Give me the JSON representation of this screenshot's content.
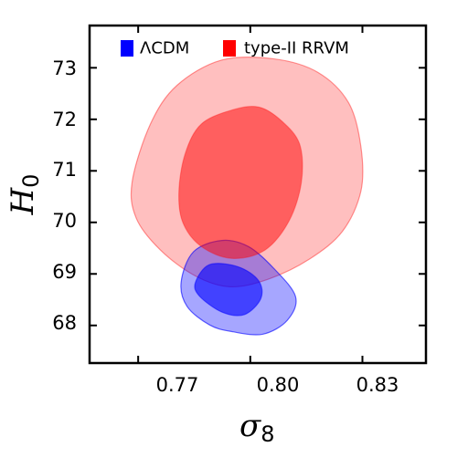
{
  "chart_data": {
    "type": "contour",
    "xlabel": "σ",
    "xlabel_sub": "8",
    "ylabel": "H",
    "ylabel_sub": "0",
    "xlim": [
      0.757,
      0.847
    ],
    "ylim": [
      67.27,
      73.82
    ],
    "xticks": [
      0.77,
      0.8,
      0.83
    ],
    "xtick_labels": [
      "0.77",
      "0.80",
      "0.83"
    ],
    "yticks": [
      68,
      69,
      70,
      71,
      72,
      73
    ],
    "ytick_labels": [
      "68",
      "69",
      "70",
      "71",
      "72",
      "73"
    ],
    "legend_position": "top",
    "series": [
      {
        "name": "ΛCDM",
        "color": "#0000ff",
        "contours": [
          {
            "level": "outer",
            "points": [
              [
                0.7815,
                68.84
              ],
              [
                0.7848,
                69.43
              ],
              [
                0.7924,
                69.65
              ],
              [
                0.7995,
                69.53
              ],
              [
                0.8061,
                69.12
              ],
              [
                0.8121,
                68.56
              ],
              [
                0.8099,
                68.1
              ],
              [
                0.8033,
                67.83
              ],
              [
                0.7951,
                67.88
              ],
              [
                0.7891,
                68.01
              ],
              [
                0.7831,
                68.37
              ]
            ]
          },
          {
            "level": "inner",
            "points": [
              [
                0.7853,
                68.83
              ],
              [
                0.7891,
                69.18
              ],
              [
                0.7967,
                69.14
              ],
              [
                0.8022,
                68.87
              ],
              [
                0.8028,
                68.52
              ],
              [
                0.7984,
                68.21
              ],
              [
                0.7924,
                68.26
              ],
              [
                0.7864,
                68.57
              ]
            ]
          }
        ]
      },
      {
        "name": "type-II RRVM",
        "color": "#ff0000",
        "contours": [
          {
            "level": "outer",
            "points": [
              [
                0.7684,
                70.79
              ],
              [
                0.7733,
                71.91
              ],
              [
                0.7804,
                72.66
              ],
              [
                0.7924,
                73.15
              ],
              [
                0.8066,
                73.17
              ],
              [
                0.8181,
                72.91
              ],
              [
                0.8263,
                72.32
              ],
              [
                0.8296,
                71.46
              ],
              [
                0.8296,
                70.61
              ],
              [
                0.8247,
                69.83
              ],
              [
                0.8159,
                69.29
              ],
              [
                0.8049,
                68.9
              ],
              [
                0.7946,
                68.75
              ],
              [
                0.7853,
                68.96
              ],
              [
                0.776,
                69.46
              ],
              [
                0.7695,
                70.08
              ]
            ]
          },
          {
            "level": "inner",
            "points": [
              [
                0.7809,
                70.59
              ],
              [
                0.7826,
                71.34
              ],
              [
                0.7869,
                71.91
              ],
              [
                0.7951,
                72.18
              ],
              [
                0.8022,
                72.24
              ],
              [
                0.8082,
                71.98
              ],
              [
                0.8132,
                71.52
              ],
              [
                0.8137,
                70.79
              ],
              [
                0.8104,
                70.03
              ],
              [
                0.8039,
                69.46
              ],
              [
                0.7951,
                69.3
              ],
              [
                0.7869,
                69.53
              ],
              [
                0.782,
                69.99
              ]
            ]
          }
        ]
      }
    ]
  }
}
